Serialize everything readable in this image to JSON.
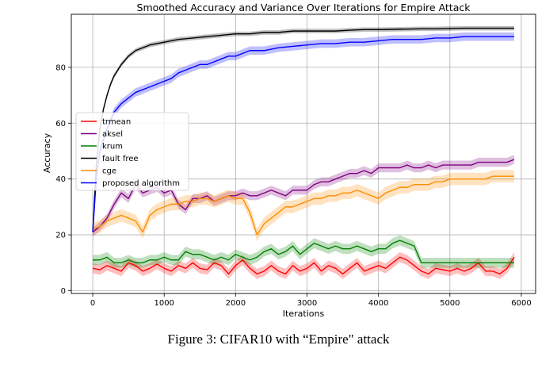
{
  "chart_data": {
    "type": "line",
    "title": "Smoothed Accuracy and Variance Over Iterations for Empire Attack",
    "xlabel": "Iterations",
    "ylabel": "Accuracy",
    "xlim": [
      -300,
      6200
    ],
    "ylim": [
      -1,
      99
    ],
    "x_ticks": [
      0,
      1000,
      2000,
      3000,
      4000,
      5000,
      6000
    ],
    "y_ticks": [
      0,
      20,
      40,
      60,
      80
    ],
    "grid": true,
    "legend_position": "center-left",
    "series": [
      {
        "name": "trmean",
        "color": "#ff0000",
        "band": 1.8,
        "x": [
          0,
          100,
          200,
          300,
          400,
          500,
          600,
          700,
          800,
          900,
          1000,
          1100,
          1200,
          1300,
          1400,
          1500,
          1600,
          1700,
          1800,
          1900,
          2000,
          2100,
          2200,
          2300,
          2400,
          2500,
          2600,
          2700,
          2800,
          2900,
          3000,
          3100,
          3200,
          3300,
          3400,
          3500,
          3600,
          3700,
          3800,
          3900,
          4000,
          4100,
          4200,
          4300,
          4400,
          4500,
          4600,
          4700,
          4800,
          4900,
          5000,
          5100,
          5200,
          5300,
          5400,
          5500,
          5600,
          5700,
          5800,
          5900
        ],
        "y": [
          8,
          7.5,
          9,
          8,
          7,
          10,
          9,
          7,
          8,
          9.5,
          8,
          7,
          9,
          8,
          10,
          8,
          7.5,
          10,
          9,
          6,
          9,
          11,
          8,
          6,
          7,
          9,
          7,
          6,
          9,
          7,
          8,
          10,
          7,
          9,
          8,
          6,
          8,
          10,
          7,
          8,
          9,
          8,
          10,
          12,
          11,
          9,
          7,
          6,
          8,
          7.5,
          7,
          8,
          7,
          8,
          10,
          7,
          7,
          6,
          8,
          12
        ]
      },
      {
        "name": "aksel",
        "color": "#800080",
        "band": 1.6,
        "x": [
          0,
          100,
          200,
          300,
          400,
          500,
          600,
          700,
          800,
          900,
          1000,
          1100,
          1200,
          1300,
          1400,
          1500,
          1600,
          1700,
          1800,
          1900,
          2000,
          2100,
          2200,
          2300,
          2400,
          2500,
          2600,
          2700,
          2800,
          2900,
          3000,
          3100,
          3200,
          3300,
          3400,
          3500,
          3600,
          3700,
          3800,
          3900,
          4000,
          4100,
          4200,
          4300,
          4400,
          4500,
          4600,
          4700,
          4800,
          4900,
          5000,
          5100,
          5200,
          5300,
          5400,
          5500,
          5600,
          5700,
          5800,
          5900
        ],
        "y": [
          21,
          23,
          26,
          31,
          35,
          33,
          38,
          35,
          36,
          37,
          35,
          36,
          31,
          29,
          33,
          33,
          34,
          32,
          33,
          34,
          34,
          35,
          34,
          34,
          35,
          36,
          35,
          34,
          36,
          36,
          36,
          38,
          39,
          39,
          40,
          41,
          42,
          42,
          43,
          42,
          44,
          44,
          44,
          44,
          45,
          44,
          44,
          45,
          44,
          45,
          45,
          45,
          45,
          45,
          46,
          46,
          46,
          46,
          46,
          47
        ]
      },
      {
        "name": "krum",
        "color": "#008000",
        "band": 1.8,
        "x": [
          0,
          100,
          200,
          300,
          400,
          500,
          600,
          700,
          800,
          900,
          1000,
          1100,
          1200,
          1300,
          1400,
          1500,
          1600,
          1700,
          1800,
          1900,
          2000,
          2100,
          2200,
          2300,
          2400,
          2500,
          2600,
          2700,
          2800,
          2900,
          3000,
          3100,
          3200,
          3300,
          3400,
          3500,
          3600,
          3700,
          3800,
          3900,
          4000,
          4100,
          4200,
          4300,
          4400,
          4500,
          4600,
          4700,
          4800,
          4900,
          5000,
          5100,
          5200,
          5300,
          5400,
          5500,
          5600,
          5700,
          5800,
          5900
        ],
        "y": [
          11,
          11,
          12,
          10,
          10,
          11,
          10,
          10,
          11,
          11,
          12,
          11,
          11,
          14,
          13,
          13,
          12,
          11,
          12,
          11,
          13,
          12,
          11,
          12,
          14,
          15,
          13,
          14,
          16,
          13,
          15,
          17,
          16,
          15,
          16,
          15,
          15,
          16,
          15,
          14,
          15,
          15,
          17,
          18,
          17,
          16,
          10,
          10,
          10,
          10,
          10,
          10,
          10,
          10,
          10,
          10,
          10,
          10,
          10,
          10
        ]
      },
      {
        "name": "fault free",
        "color": "#000000",
        "band": 0.8,
        "x": [
          0,
          50,
          100,
          150,
          200,
          250,
          300,
          400,
          500,
          600,
          700,
          800,
          900,
          1000,
          1200,
          1400,
          1600,
          1800,
          2000,
          2200,
          2400,
          2600,
          2800,
          3000,
          3200,
          3400,
          3600,
          3800,
          4000,
          4200,
          4400,
          4600,
          4800,
          5000,
          5200,
          5400,
          5600,
          5800,
          5900
        ],
        "y": [
          21,
          45,
          58,
          65,
          70,
          74,
          77,
          81,
          84,
          86,
          87,
          88,
          88.5,
          89,
          90,
          90.5,
          91,
          91.5,
          92,
          92,
          92.5,
          92.5,
          93,
          93,
          93,
          93,
          93.3,
          93.5,
          93.5,
          93.6,
          93.7,
          93.8,
          93.8,
          93.9,
          94,
          94,
          94,
          94,
          94
        ]
      },
      {
        "name": "cge",
        "color": "#ff8c00",
        "band": 2.2,
        "x": [
          0,
          100,
          200,
          300,
          400,
          500,
          600,
          700,
          800,
          900,
          1000,
          1100,
          1200,
          1300,
          1400,
          1500,
          1600,
          1700,
          1800,
          1900,
          2000,
          2100,
          2200,
          2300,
          2400,
          2500,
          2600,
          2700,
          2800,
          2900,
          3000,
          3100,
          3200,
          3300,
          3400,
          3500,
          3600,
          3700,
          3800,
          3900,
          4000,
          4100,
          4200,
          4300,
          4400,
          4500,
          4600,
          4700,
          4800,
          4900,
          5000,
          5100,
          5200,
          5300,
          5400,
          5500,
          5600,
          5700,
          5800,
          5900
        ],
        "y": [
          22,
          23,
          25,
          26,
          27,
          26,
          25,
          21,
          27,
          29,
          30,
          31,
          31,
          32,
          32,
          33,
          33,
          32,
          33,
          34,
          33,
          33,
          28,
          20,
          24,
          26,
          28,
          30,
          30,
          31,
          32,
          33,
          33,
          34,
          34,
          35,
          35,
          36,
          35,
          34,
          33,
          35,
          36,
          37,
          37,
          38,
          38,
          38,
          39,
          39,
          40,
          40,
          40,
          40,
          40,
          40,
          41,
          41,
          41,
          41
        ]
      },
      {
        "name": "proposed algorithm",
        "color": "#0000ff",
        "band": 1.5,
        "x": [
          0,
          50,
          100,
          200,
          300,
          400,
          500,
          600,
          700,
          800,
          900,
          1000,
          1100,
          1200,
          1300,
          1400,
          1500,
          1600,
          1700,
          1800,
          1900,
          2000,
          2100,
          2200,
          2400,
          2600,
          2800,
          3000,
          3200,
          3400,
          3600,
          3800,
          4000,
          4200,
          4400,
          4600,
          4800,
          5000,
          5200,
          5400,
          5600,
          5800,
          5900
        ],
        "y": [
          21,
          40,
          50,
          58,
          64,
          67,
          69,
          71,
          72,
          73,
          74,
          75,
          76,
          78,
          79,
          80,
          81,
          81,
          82,
          83,
          84,
          84,
          85,
          86,
          86,
          87,
          87.5,
          88,
          88.5,
          88.5,
          89,
          89,
          89.5,
          90,
          90,
          90,
          90.5,
          90.5,
          91,
          91,
          91,
          91,
          91
        ]
      }
    ]
  },
  "caption": "Figure 3: CIFAR10 with “Empire\" attack"
}
